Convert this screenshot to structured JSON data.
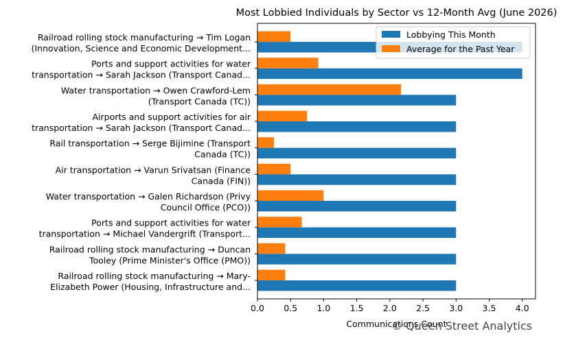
{
  "chart_data": {
    "type": "bar",
    "orientation": "horizontal",
    "title": "Most Lobbied Individuals by Sector vs 12-Month Avg (June 2026)",
    "xlabel": "Communications Count",
    "ylabel": "",
    "xlim": [
      0,
      4.2
    ],
    "xticks": [
      "0.0",
      "0.5",
      "1.0",
      "1.5",
      "2.0",
      "2.5",
      "3.0",
      "3.5",
      "4.0"
    ],
    "grid": false,
    "legend_position": "top-right",
    "categories": [
      [
        "Railroad rolling stock manufacturing → Tim Logan",
        "(Innovation, Science and Economic Development..."
      ],
      [
        "Ports and support activities for water",
        "transportation → Sarah Jackson (Transport Canad..."
      ],
      [
        "Water transportation → Owen Crawford-Lem",
        "(Transport Canada (TC))"
      ],
      [
        "Airports and support activities for air",
        "transportation → Sarah Jackson (Transport Canad..."
      ],
      [
        "Rail transportation → Serge Bijimine (Transport",
        "Canada (TC))"
      ],
      [
        "Air transportation → Varun  Srivatsan (Finance",
        "Canada (FIN))"
      ],
      [
        "Water transportation → Galen Richardson (Privy",
        "Council Office (PCO))"
      ],
      [
        "Ports and support activities for water",
        "transportation → Michael Vandergrift (Transport..."
      ],
      [
        "Railroad rolling stock manufacturing → Duncan",
        "Tooley (Prime Minister's Office (PMO))"
      ],
      [
        "Railroad rolling stock manufacturing → Mary-",
        "Elizabeth Power (Housing, Infrastructure and..."
      ]
    ],
    "series": [
      {
        "name": "Lobbying This Month",
        "color": "#1f77b4",
        "values": [
          4,
          4,
          3,
          3,
          3,
          3,
          3,
          3,
          3,
          3
        ]
      },
      {
        "name": "Average for the Past Year",
        "color": "#ff7f0e",
        "values": [
          0.5,
          0.92,
          2.17,
          0.75,
          0.25,
          0.5,
          1.0,
          0.67,
          0.42,
          0.42
        ]
      }
    ]
  },
  "watermark": "© Queen Street Analytics"
}
